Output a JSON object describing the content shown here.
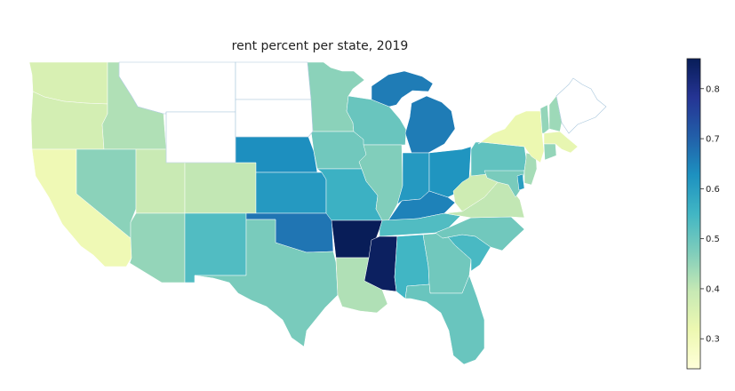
{
  "title": "rent percent per state, 2019",
  "colorbar": {
    "min": 0.24,
    "max": 0.86,
    "ticks": [
      0.3,
      0.4,
      0.5,
      0.6,
      0.7,
      0.8
    ],
    "tick_labels": [
      "0.3",
      "0.4",
      "0.5",
      "0.6",
      "0.7",
      "0.8"
    ],
    "colormap": [
      "#ffffd9",
      "#edf8b1",
      "#c7e9b4",
      "#7fcdbb",
      "#41b6c4",
      "#1d91c0",
      "#225ea8",
      "#253494",
      "#081d58"
    ]
  },
  "states": {
    "WA": 0.36,
    "OR": 0.37,
    "CA": 0.31,
    "ID": 0.42,
    "NV": 0.46,
    "UT": 0.39,
    "AZ": 0.45,
    "CO": 0.4,
    "NM": 0.53,
    "NE": 0.63,
    "KS": 0.61,
    "OK": 0.67,
    "TX": 0.48,
    "MN": 0.46,
    "IA": 0.49,
    "MO": 0.56,
    "AR": 0.86,
    "LA": 0.42,
    "WI": 0.5,
    "IL": 0.47,
    "MI": 0.66,
    "IN": 0.61,
    "OH": 0.62,
    "KY": 0.65,
    "TN": 0.53,
    "MS": 0.85,
    "AL": 0.55,
    "GA": 0.49,
    "FL": 0.5,
    "SC": 0.54,
    "NC": 0.49,
    "VA": 0.4,
    "WV": 0.38,
    "PA": 0.51,
    "NY": 0.32,
    "NJ": 0.43,
    "DE": 0.6,
    "MD": 0.48,
    "VT": 0.45,
    "NH": 0.44,
    "MA": 0.33,
    "CT": 0.45
  },
  "no_data": [
    "MT",
    "WY",
    "ND",
    "SD",
    "ME"
  ]
}
